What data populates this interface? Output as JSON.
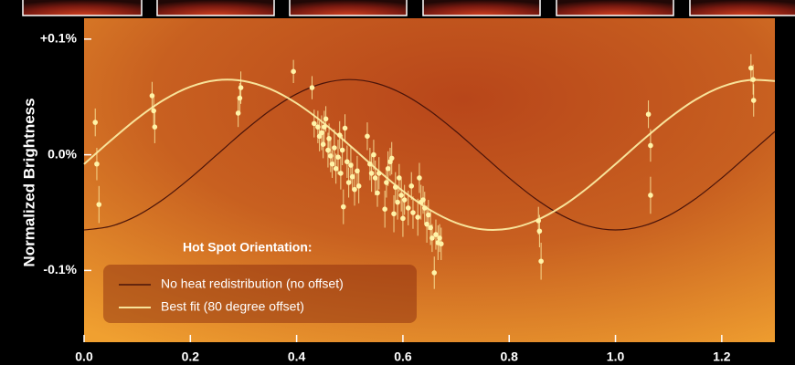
{
  "chart_data": {
    "type": "line",
    "y_label": "Normalized Brightness",
    "legend_title": "Hot Spot Orientation:",
    "xlim": [
      0,
      1.3
    ],
    "xticks": [
      {
        "value": 0,
        "label": "0.0"
      },
      0.2,
      0.4,
      0.6,
      0.8,
      {
        "value": 1,
        "label": "1.0"
      },
      1.2
    ],
    "ylim": [
      -0.162,
      0.118
    ],
    "yticks": [
      {
        "value": -0.1,
        "label": "-0.1%"
      },
      {
        "value": 0,
        "label": "0.0%"
      },
      {
        "value": 0.1,
        "label": "+0.1%"
      }
    ],
    "x": [
      0,
      0.05,
      0.1,
      0.15,
      0.2,
      0.25,
      0.3,
      0.35,
      0.4,
      0.45,
      0.5,
      0.55,
      0.6,
      0.65,
      0.7,
      0.75,
      0.8,
      0.85,
      0.9,
      0.95,
      1,
      1.05,
      1.1,
      1.15,
      1.2,
      1.25,
      1.3
    ],
    "series": [
      {
        "name": "No heat redistribution (no offset)",
        "color": "#4a140a",
        "values": [
          -0.065,
          -0.0618,
          -0.0526,
          -0.0382,
          -0.0201,
          0,
          0.0201,
          0.0382,
          0.0526,
          0.0618,
          0.065,
          0.0618,
          0.0526,
          0.0382,
          0.0201,
          0,
          -0.0201,
          -0.0382,
          -0.0526,
          -0.0618,
          -0.065,
          -0.0618,
          -0.0526,
          -0.0382,
          -0.0201,
          0,
          0.0201
        ]
      },
      {
        "name": "Best fit (80 degree offset)",
        "color": "#f8e39a",
        "values": [
          -0.0081,
          0.0122,
          0.0313,
          0.0474,
          0.0588,
          0.0645,
          0.0638,
          0.0569,
          0.0445,
          0.0277,
          0.0081,
          -0.0122,
          -0.0313,
          -0.0474,
          -0.0588,
          -0.0645,
          -0.0638,
          -0.0569,
          -0.0445,
          -0.0277,
          -0.0081,
          0.0122,
          0.0313,
          0.0474,
          0.0588,
          0.0645,
          0.0638
        ]
      }
    ],
    "scatter": {
      "color": "#fff3a8",
      "x": [
        0.021,
        0.024,
        0.028,
        0.128,
        0.131,
        0.133,
        0.29,
        0.293,
        0.295,
        0.394,
        0.429,
        0.433,
        0.44,
        0.443,
        0.447,
        0.45,
        0.452,
        0.455,
        0.459,
        0.461,
        0.464,
        0.467,
        0.471,
        0.474,
        0.478,
        0.481,
        0.483,
        0.486,
        0.488,
        0.491,
        0.495,
        0.498,
        0.502,
        0.505,
        0.509,
        0.514,
        0.517,
        0.533,
        0.538,
        0.541,
        0.545,
        0.548,
        0.552,
        0.555,
        0.566,
        0.569,
        0.572,
        0.576,
        0.579,
        0.583,
        0.586,
        0.59,
        0.593,
        0.597,
        0.6,
        0.603,
        0.61,
        0.616,
        0.619,
        0.628,
        0.631,
        0.634,
        0.638,
        0.641,
        0.645,
        0.648,
        0.652,
        0.655,
        0.659,
        0.662,
        0.666,
        0.669,
        0.672,
        0.855,
        0.857,
        0.86,
        1.062,
        1.066,
        1.066,
        1.255,
        1.259,
        1.26
      ],
      "values": [
        0.028,
        -0.008,
        -0.043,
        0.051,
        0.038,
        0.024,
        0.036,
        0.049,
        0.058,
        0.072,
        0.058,
        0.027,
        0.024,
        0.016,
        0.019,
        0.009,
        0.024,
        0.031,
        0.004,
        0.014,
        -0.001,
        -0.008,
        0.006,
        -0.012,
        -0.002,
        0.017,
        -0.016,
        0.004,
        -0.045,
        0.023,
        -0.006,
        -0.024,
        -0.009,
        -0.019,
        -0.03,
        -0.014,
        -0.027,
        0.016,
        -0.008,
        -0.016,
        0,
        -0.02,
        -0.033,
        -0.016,
        -0.047,
        -0.024,
        -0.012,
        -0.006,
        -0.003,
        -0.051,
        -0.028,
        -0.041,
        -0.02,
        -0.035,
        -0.055,
        -0.039,
        -0.046,
        -0.027,
        -0.05,
        -0.054,
        -0.02,
        -0.041,
        -0.039,
        -0.046,
        -0.06,
        -0.052,
        -0.063,
        -0.072,
        -0.102,
        -0.069,
        -0.076,
        -0.072,
        -0.077,
        -0.057,
        -0.066,
        -0.092,
        0.035,
        0.008,
        -0.035,
        0.075,
        0.065,
        0.047
      ],
      "errors": [
        0.012,
        0.014,
        0.016,
        0.012,
        0.013,
        0.014,
        0.012,
        0.013,
        0.014,
        0.01,
        0.01,
        0.012,
        0.014,
        0.013,
        0.015,
        0.012,
        0.014,
        0.011,
        0.015,
        0.013,
        0.014,
        0.012,
        0.016,
        0.013,
        0.015,
        0.012,
        0.014,
        0.013,
        0.015,
        0.012,
        0.014,
        0.013,
        0.016,
        0.012,
        0.014,
        0.013,
        0.015,
        0.012,
        0.014,
        0.016,
        0.013,
        0.015,
        0.012,
        0.014,
        0.016,
        0.013,
        0.015,
        0.012,
        0.014,
        0.016,
        0.013,
        0.015,
        0.012,
        0.014,
        0.016,
        0.013,
        0.015,
        0.012,
        0.014,
        0.016,
        0.013,
        0.015,
        0.012,
        0.014,
        0.016,
        0.013,
        0.015,
        0.012,
        0.014,
        0.013,
        0.015,
        0.012,
        0.014,
        0.012,
        0.014,
        0.016,
        0.012,
        0.014,
        0.016,
        0.012,
        0.013,
        0.014
      ]
    }
  }
}
